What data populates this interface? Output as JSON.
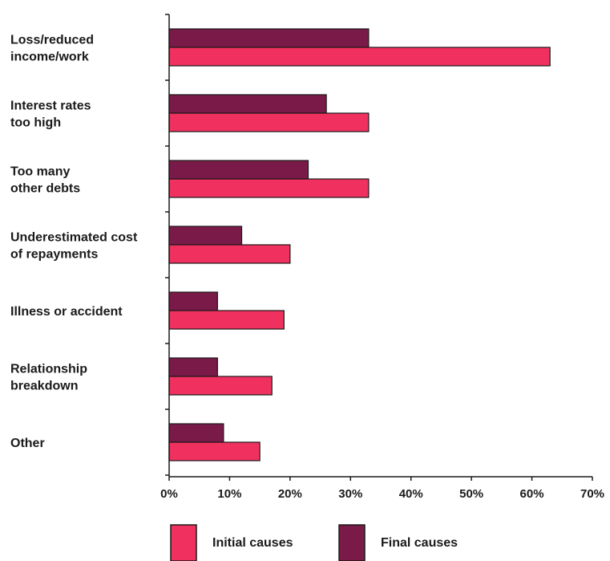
{
  "chart_data": {
    "type": "bar",
    "orientation": "horizontal",
    "categories": [
      [
        "Loss/reduced",
        "income/work"
      ],
      [
        "Interest rates",
        "too high"
      ],
      [
        "Too many",
        "other debts"
      ],
      [
        "Underestimated cost",
        "of repayments"
      ],
      [
        "Illness or accident"
      ],
      [
        "Relationship",
        "breakdown"
      ],
      [
        "Other"
      ]
    ],
    "series": [
      {
        "name": "Final causes",
        "color": "#7a1a48",
        "values": [
          33,
          26,
          23,
          12,
          8,
          8,
          9
        ]
      },
      {
        "name": "Initial causes",
        "color": "#f0305e",
        "values": [
          63,
          33,
          33,
          20,
          19,
          17,
          15
        ]
      }
    ],
    "xlim": [
      0,
      70
    ],
    "xticks": [
      0,
      10,
      20,
      30,
      40,
      50,
      60,
      70
    ],
    "xtick_labels": [
      "0%",
      "10%",
      "20%",
      "30%",
      "40%",
      "50%",
      "60%",
      "70%"
    ],
    "grid": false,
    "legend": {
      "placement": "bottom",
      "items": [
        {
          "label": "Initial causes",
          "color": "#f0305e"
        },
        {
          "label": "Final causes",
          "color": "#7a1a48"
        }
      ]
    }
  }
}
